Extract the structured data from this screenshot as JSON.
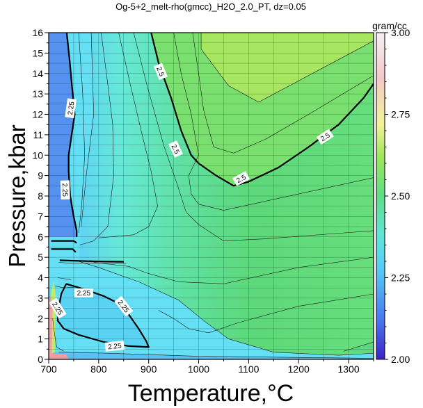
{
  "chart_data": {
    "type": "heatmap",
    "title": "Og-5+2_melt-rho(gmcc)_H2O_2.0_PT, dz=0.05",
    "xlabel": "Temperature,°C",
    "ylabel": "Pressure,kbar",
    "xlim": [
      700,
      1350
    ],
    "ylim": [
      0,
      16
    ],
    "x_ticks": [
      700,
      800,
      900,
      1000,
      1100,
      1200,
      1300
    ],
    "y_ticks": [
      0,
      1,
      2,
      3,
      4,
      5,
      6,
      7,
      8,
      9,
      10,
      11,
      12,
      13,
      14,
      15,
      16
    ],
    "grid": true,
    "colorbar": {
      "unit": "gram/cc",
      "range": [
        2.0,
        3.0
      ],
      "ticks": [
        "2.00",
        "2.25",
        "2.50",
        "2.75",
        "3.00"
      ],
      "placement": "right"
    },
    "contour_interval": 0.05,
    "major_contours": [
      {
        "level": "2.5",
        "points": [
          [
            905,
            16
          ],
          [
            920,
            14.5
          ],
          [
            945,
            12.8
          ],
          [
            965,
            11.2
          ],
          [
            985,
            10.0
          ],
          [
            1000,
            9.6
          ],
          [
            1035,
            9.0
          ],
          [
            1070,
            8.5
          ],
          [
            1100,
            8.7
          ],
          [
            1160,
            9.4
          ],
          [
            1220,
            10.4
          ],
          [
            1280,
            11.5
          ],
          [
            1330,
            12.8
          ],
          [
            1350,
            13.5
          ]
        ]
      },
      {
        "level": "2.25",
        "points": [
          [
            736,
            16
          ],
          [
            742,
            14.6
          ],
          [
            748,
            13
          ],
          [
            752,
            12
          ],
          [
            746,
            11
          ],
          [
            740,
            10
          ],
          [
            740,
            9.2
          ],
          [
            743,
            8
          ],
          [
            750,
            7
          ],
          [
            756,
            6.3
          ],
          [
            756,
            6.0
          ]
        ]
      },
      {
        "level": "2.25",
        "points": [
          [
            735,
            3.7
          ],
          [
            775,
            3.4
          ],
          [
            810,
            3.1
          ],
          [
            835,
            2.8
          ],
          [
            860,
            2.2
          ],
          [
            880,
            1.5
          ],
          [
            895,
            0.9
          ],
          [
            900,
            0.6
          ],
          [
            860,
            0.65
          ],
          [
            810,
            0.85
          ],
          [
            760,
            1.2
          ],
          [
            730,
            1.5
          ],
          [
            718,
            1.9
          ],
          [
            720,
            2.5
          ],
          [
            725,
            3.2
          ],
          [
            735,
            3.7
          ]
        ]
      },
      {
        "level": "2.25",
        "points": [
          [
            705,
            5.8
          ],
          [
            750,
            5.8
          ],
          [
            756,
            5.7
          ]
        ]
      },
      {
        "level": "2.25",
        "points": [
          [
            705,
            5.4
          ],
          [
            748,
            5.4
          ],
          [
            754,
            5.25
          ]
        ]
      },
      {
        "level": "2.25",
        "points": [
          [
            722,
            4.85
          ],
          [
            790,
            4.8
          ],
          [
            850,
            4.78
          ]
        ]
      }
    ],
    "contour_labels": [
      {
        "text": "2.5",
        "x": 924,
        "y": 14.1,
        "angle": 68
      },
      {
        "text": "2.5",
        "x": 954,
        "y": 10.3,
        "angle": 65
      },
      {
        "text": "2.5",
        "x": 1085,
        "y": 8.85,
        "angle": -28
      },
      {
        "text": "2.5",
        "x": 1253,
        "y": 10.9,
        "angle": -33
      },
      {
        "text": "2.25",
        "x": 744,
        "y": 12.3,
        "angle": -82
      },
      {
        "text": "2.25",
        "x": 733,
        "y": 8.3,
        "angle": 88
      },
      {
        "text": "2.25",
        "x": 770,
        "y": 3.25,
        "angle": 0
      },
      {
        "text": "2.25",
        "x": 718,
        "y": 2.5,
        "angle": 58
      },
      {
        "text": "2.25",
        "x": 850,
        "y": 2.6,
        "angle": 52
      },
      {
        "text": "2.25",
        "x": 832,
        "y": 0.65,
        "angle": -6
      }
    ]
  }
}
